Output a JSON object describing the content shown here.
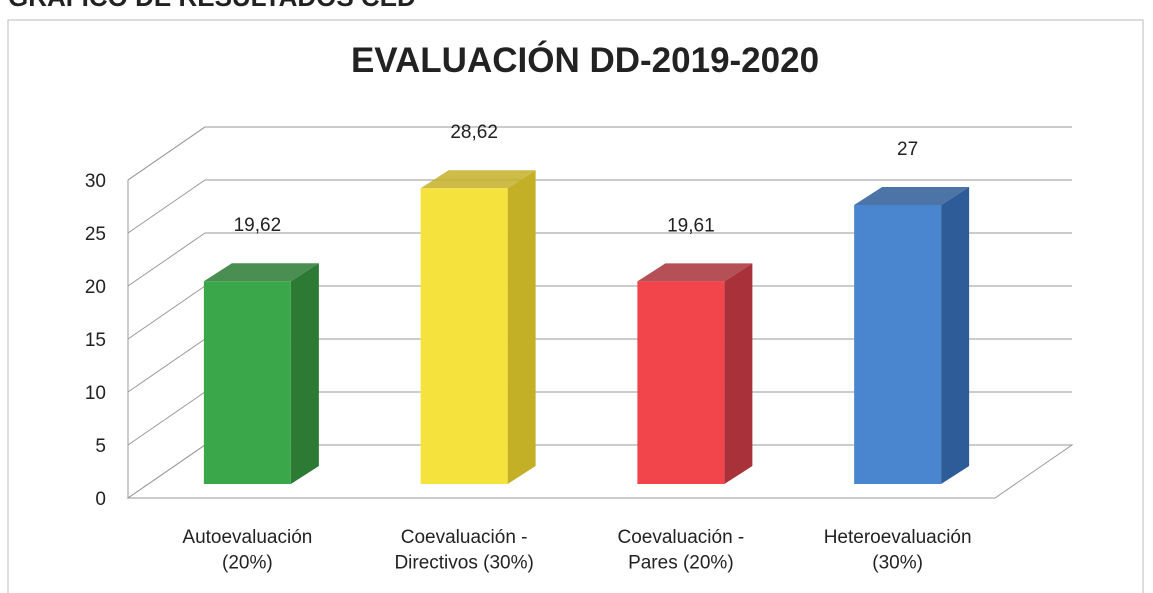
{
  "header": "GRÁFICO DE RESULTADOS CED",
  "chart_data": {
    "type": "bar3d",
    "title": "EVALUACIÓN DD-2019-2020",
    "categories": [
      "Autoevaluación\n(20%)",
      "Coevaluación -\nDirectivos (30%)",
      "Coevaluación -\nPares (20%)",
      "Heteroevaluación\n(30%)"
    ],
    "values": [
      19.62,
      28.62,
      19.61,
      27
    ],
    "value_labels": [
      "19,62",
      "28,62",
      "19,61",
      "27"
    ],
    "colors": [
      "#3aa84a",
      "#f6e23c",
      "#f2454b",
      "#4a86d0"
    ],
    "side_colors": [
      "#2c7a34",
      "#c4b027",
      "#a8313a",
      "#2d5c98"
    ],
    "ylim": [
      0,
      30
    ],
    "yticks": [
      0,
      5,
      10,
      15,
      20,
      25,
      30
    ],
    "grid": true
  }
}
